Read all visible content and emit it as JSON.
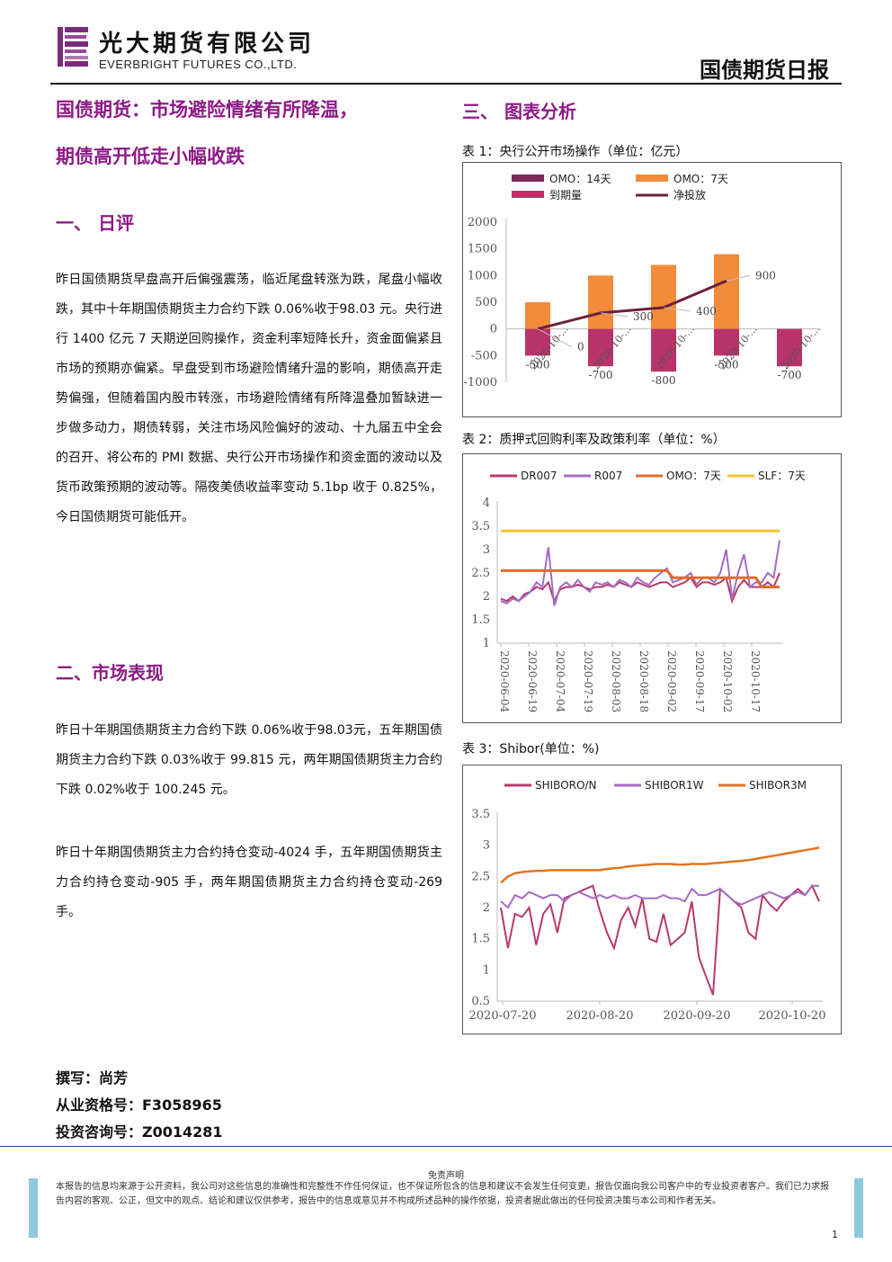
{
  "header": {
    "company_cn": "光大期货有限公司",
    "company_en": "EVERBRIGHT FUTURES CO.,LTD.",
    "report_title": "国债期货日报"
  },
  "left": {
    "title_line1": "国债期货：市场避险情绪有所降温，",
    "title_line2": "期债高开低走小幅收跌",
    "section1_title": "一、  日评",
    "section1_para": "昨日国债期货早盘高开后偏强震荡，临近尾盘转涨为跌，尾盘小幅收跌，其中十年期国债期货主力合约下跌 0.06%收于98.03 元。央行进行 1400 亿元 7 天期逆回购操作，资金利率短降长升，资金面偏紧且市场的预期亦偏紧。早盘受到市场避险情绪升温的影响，期债高开走势偏强，但随着国内股市转涨，市场避险情绪有所降温叠加暂缺进一步做多动力，期债转弱，关注市场风险偏好的波动、十九届五中全会的召开、将公布的 PMI 数据、央行公开市场操作和资金面的波动以及货币政策预期的波动等。隔夜美债收益率变动 5.1bp 收于 0.825%，今日国债期货可能低开。",
    "section2_title": "二、市场表现",
    "section2_para1": "昨日十年期国债期货主力合约下跌 0.06%收于98.03元，五年期国债期货主力合约下跌 0.03%收于 99.815 元，两年期国债期货主力合约下跌 0.02%收于 100.245 元。",
    "section2_para2": "昨日十年期国债期货主力合约持仓变动-4024 手，五年期国债期货主力合约持仓变动-905 手，两年期国债期货主力合约持仓变动-269 手。",
    "author": "撰写：尚芳",
    "qualification": "从业资格号：F3058965",
    "consulting": "投资咨询号：Z0014281"
  },
  "right": {
    "section3_title": "三、  图表分析",
    "chart1_caption": "表 1：央行公开市场操作（单位：亿元）",
    "chart2_caption": "表 2：质押式回购利率及政策利率（单位：%）",
    "chart3_caption": "表 3：Shibor(单位：%)"
  },
  "colors": {
    "brand_purple": "#8e1a86",
    "omo14": "#7b2a5b",
    "omo7": "#f28c3a",
    "maturity": "#b9336b",
    "net": "#6b1f3a",
    "dr007": "#b8386e",
    "r007": "#a46cc4",
    "omo7_line": "#e06c2c",
    "slf7": "#f2c232",
    "shibor_on": "#b8386e",
    "shibor_1w": "#a46cc4",
    "shibor_3m": "#e27424"
  },
  "chart_data": [
    {
      "type": "bar",
      "categories": [
        "2020-10-...",
        "2020-10-...",
        "2020-10-...",
        "2020-10-...",
        "2020-10-..."
      ],
      "series": [
        {
          "name": "OMO：14天",
          "values": [
            0,
            0,
            0,
            0,
            0
          ]
        },
        {
          "name": "OMO：7天",
          "values": [
            500,
            1000,
            1200,
            1400,
            0
          ]
        },
        {
          "name": "到期量",
          "values": [
            -500,
            -700,
            -800,
            -500,
            -700
          ]
        },
        {
          "name": "净投放",
          "values": [
            0,
            300,
            400,
            900,
            null
          ]
        }
      ],
      "data_labels": {
        "到期量": [
          "-500",
          "-700",
          "-800",
          "-500",
          "-700"
        ],
        "净投放": [
          "0",
          "300",
          "400",
          "900"
        ]
      },
      "yticks": [
        "2000",
        "1500",
        "1000",
        "500",
        "0",
        "-500",
        "-1000"
      ],
      "ylim": [
        -1000,
        2000
      ],
      "legend": "top"
    },
    {
      "type": "line",
      "x_ticks": [
        "2020-06-04",
        "2020-06-19",
        "2020-07-04",
        "2020-07-19",
        "2020-08-03",
        "2020-08-18",
        "2020-09-02",
        "2020-09-17",
        "2020-10-02",
        "2020-10-17"
      ],
      "yticks": [
        "4",
        "3.5",
        "3",
        "2.5",
        "2",
        "1.5",
        "1"
      ],
      "ylim": [
        1,
        4
      ],
      "series": [
        {
          "name": "DR007",
          "values": [
            1.95,
            1.9,
            2.0,
            1.9,
            2.05,
            2.1,
            2.2,
            2.15,
            2.3,
            1.9,
            2.15,
            2.2,
            2.2,
            2.25,
            2.2,
            2.15,
            2.2,
            2.2,
            2.25,
            2.2,
            2.3,
            2.25,
            2.2,
            2.3,
            2.25,
            2.2,
            2.25,
            2.3,
            2.3,
            2.2,
            2.25,
            2.3,
            2.4,
            2.2,
            2.3,
            2.3,
            2.25,
            2.3,
            2.4,
            1.9,
            2.2,
            2.35,
            2.2,
            2.2,
            2.2,
            2.3,
            2.2,
            2.5
          ]
        },
        {
          "name": "R007",
          "values": [
            1.9,
            1.85,
            1.95,
            1.9,
            2.0,
            2.1,
            2.3,
            2.2,
            3.05,
            1.8,
            2.2,
            2.3,
            2.2,
            2.35,
            2.2,
            2.1,
            2.3,
            2.25,
            2.3,
            2.2,
            2.35,
            2.3,
            2.2,
            2.4,
            2.3,
            2.25,
            2.4,
            2.5,
            2.6,
            2.3,
            2.35,
            2.4,
            2.5,
            2.25,
            2.4,
            2.4,
            2.3,
            2.5,
            3.0,
            1.95,
            2.5,
            2.9,
            2.2,
            2.3,
            2.3,
            2.5,
            2.4,
            3.2
          ]
        },
        {
          "name": "OMO：7天",
          "values": [
            2.55,
            2.55,
            2.55,
            2.55,
            2.55,
            2.55,
            2.55,
            2.55,
            2.55,
            2.55,
            2.55,
            2.55,
            2.55,
            2.55,
            2.55,
            2.55,
            2.55,
            2.55,
            2.55,
            2.55,
            2.55,
            2.55,
            2.55,
            2.55,
            2.55,
            2.55,
            2.55,
            2.55,
            2.55,
            2.4,
            2.4,
            2.4,
            2.4,
            2.4,
            2.4,
            2.4,
            2.4,
            2.4,
            2.4,
            2.4,
            2.4,
            2.4,
            2.4,
            2.4,
            2.2,
            2.2,
            2.2,
            2.2
          ]
        },
        {
          "name": "SLF：7天",
          "values": [
            3.4,
            3.4,
            3.4,
            3.4,
            3.4,
            3.4,
            3.4,
            3.4,
            3.4,
            3.4,
            3.4,
            3.4,
            3.4,
            3.4,
            3.4,
            3.4,
            3.4,
            3.4,
            3.4,
            3.4,
            3.4,
            3.4,
            3.4,
            3.4,
            3.4,
            3.4,
            3.4,
            3.4,
            3.4,
            3.4,
            3.4,
            3.4,
            3.4,
            3.4,
            3.4,
            3.4,
            3.4,
            3.4,
            3.4,
            3.4,
            3.4,
            3.4,
            3.4,
            3.4,
            3.4,
            3.4,
            3.4,
            3.4
          ]
        }
      ],
      "legend": "top"
    },
    {
      "type": "line",
      "x_ticks": [
        "2020-07-20",
        "2020-08-20",
        "2020-09-20",
        "2020-10-20"
      ],
      "yticks": [
        "3.5",
        "3",
        "2.5",
        "2",
        "1.5",
        "1",
        "0.5"
      ],
      "ylim": [
        0.5,
        3.5
      ],
      "series": [
        {
          "name": "SHIBORO/N",
          "values": [
            2.0,
            1.35,
            1.9,
            1.85,
            2.0,
            1.4,
            1.9,
            2.05,
            1.6,
            2.15,
            2.2,
            2.25,
            2.3,
            2.35,
            1.95,
            1.6,
            1.35,
            1.8,
            2.0,
            1.7,
            2.15,
            1.5,
            1.45,
            1.9,
            1.4,
            1.5,
            1.6,
            2.1,
            1.2,
            0.9,
            0.6,
            2.3,
            2.2,
            2.1,
            2.0,
            1.6,
            1.5,
            2.2,
            2.05,
            1.95,
            2.1,
            2.2,
            2.3,
            2.2,
            2.35,
            2.1
          ]
        },
        {
          "name": "SHIBOR1W",
          "values": [
            2.1,
            2.0,
            2.2,
            2.15,
            2.25,
            2.2,
            2.15,
            2.2,
            2.2,
            2.1,
            2.2,
            2.25,
            2.2,
            2.15,
            2.2,
            2.15,
            2.2,
            2.15,
            2.15,
            2.2,
            2.15,
            2.15,
            2.15,
            2.2,
            2.15,
            2.15,
            2.1,
            2.3,
            2.2,
            2.2,
            2.25,
            2.3,
            2.2,
            2.1,
            2.05,
            2.1,
            2.15,
            2.2,
            2.25,
            2.2,
            2.15,
            2.2,
            2.25,
            2.2,
            2.35,
            2.35
          ]
        },
        {
          "name": "SHIBOR3M",
          "values": [
            2.4,
            2.5,
            2.55,
            2.57,
            2.58,
            2.59,
            2.59,
            2.6,
            2.6,
            2.6,
            2.6,
            2.6,
            2.6,
            2.6,
            2.6,
            2.62,
            2.63,
            2.64,
            2.66,
            2.67,
            2.68,
            2.69,
            2.7,
            2.7,
            2.7,
            2.69,
            2.69,
            2.7,
            2.7,
            2.7,
            2.71,
            2.72,
            2.73,
            2.74,
            2.75,
            2.76,
            2.78,
            2.8,
            2.82,
            2.84,
            2.86,
            2.88,
            2.9,
            2.92,
            2.94,
            2.96
          ]
        }
      ],
      "legend": "top"
    }
  ],
  "footer": {
    "disclaimer_title": "免责声明",
    "disclaimer_text": "本报告的信息均来源于公开资料，我公司对这些信息的准确性和完整性不作任何保证，也不保证所包含的信息和建议不会发生任何变更，报告仅面向我公司客户中的专业投资者客户。我们已力求报告内容的客观、公正，但文中的观点、结论和建议仅供参考，报告中的信息或意见并不构成所述品种的操作依据，投资者据此做出的任何投资决策与本公司和作者无关。",
    "page_number": "1"
  }
}
